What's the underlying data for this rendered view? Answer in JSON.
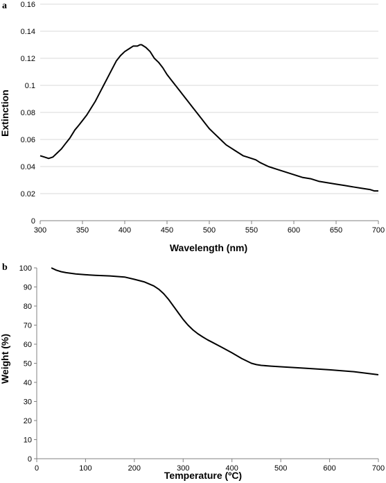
{
  "chart_data": [
    {
      "panel": "a",
      "type": "line",
      "title": "",
      "xlabel": "Wavelength (nm)",
      "ylabel": "Extinction",
      "xlim": [
        300,
        700
      ],
      "ylim": [
        0,
        0.16
      ],
      "xticks": [
        "300",
        "350",
        "400",
        "450",
        "500",
        "550",
        "600",
        "650",
        "700"
      ],
      "yticks": [
        "0",
        "0.02",
        "0.04",
        "0.06",
        "0.08",
        "0.1",
        "0.12",
        "0.14",
        "0.16"
      ],
      "grid": "horizontal",
      "series": [
        {
          "x": [
            300,
            305,
            310,
            315,
            320,
            325,
            330,
            335,
            340,
            341,
            345,
            350,
            355,
            360,
            365,
            370,
            375,
            380,
            385,
            390,
            395,
            400,
            405,
            410,
            415,
            418,
            420,
            425,
            430,
            435,
            440,
            445,
            450,
            455,
            460,
            465,
            470,
            475,
            480,
            485,
            490,
            495,
            500,
            505,
            510,
            515,
            520,
            525,
            530,
            535,
            540,
            545,
            550,
            555,
            560,
            570,
            580,
            590,
            600,
            610,
            620,
            630,
            640,
            650,
            660,
            670,
            680,
            690,
            695,
            700
          ],
          "y": [
            0.048,
            0.047,
            0.046,
            0.047,
            0.05,
            0.053,
            0.057,
            0.061,
            0.066,
            0.067,
            0.07,
            0.074,
            0.078,
            0.083,
            0.088,
            0.094,
            0.1,
            0.106,
            0.112,
            0.118,
            0.122,
            0.125,
            0.127,
            0.129,
            0.129,
            0.13,
            0.13,
            0.128,
            0.125,
            0.12,
            0.117,
            0.113,
            0.108,
            0.104,
            0.1,
            0.096,
            0.092,
            0.088,
            0.084,
            0.08,
            0.076,
            0.072,
            0.068,
            0.065,
            0.062,
            0.059,
            0.056,
            0.054,
            0.052,
            0.05,
            0.048,
            0.047,
            0.046,
            0.045,
            0.043,
            0.04,
            0.038,
            0.036,
            0.034,
            0.032,
            0.031,
            0.029,
            0.028,
            0.027,
            0.026,
            0.025,
            0.024,
            0.023,
            0.022,
            0.022
          ]
        }
      ]
    },
    {
      "panel": "b",
      "type": "line",
      "title": "",
      "xlabel": "Temperature (ºC)",
      "ylabel": "Weight (%)",
      "xlim": [
        0,
        700
      ],
      "ylim": [
        0,
        100
      ],
      "xticks": [
        "0",
        "100",
        "200",
        "300",
        "400",
        "500",
        "600",
        "700"
      ],
      "yticks": [
        "0",
        "10",
        "20",
        "30",
        "40",
        "50",
        "60",
        "70",
        "80",
        "90",
        "100"
      ],
      "grid": "none",
      "series": [
        {
          "x": [
            30,
            40,
            50,
            60,
            80,
            100,
            120,
            150,
            180,
            200,
            220,
            240,
            250,
            260,
            270,
            280,
            290,
            300,
            310,
            320,
            330,
            340,
            350,
            360,
            380,
            400,
            420,
            440,
            450,
            460,
            480,
            500,
            550,
            600,
            650,
            700
          ],
          "y": [
            100,
            98.8,
            98,
            97.5,
            96.8,
            96.4,
            96.1,
            95.8,
            95.2,
            94,
            92.7,
            90.5,
            88.8,
            86.5,
            83.5,
            80,
            76.5,
            73,
            70,
            67.5,
            65.5,
            63.8,
            62.3,
            61,
            58.3,
            55.5,
            52.5,
            50,
            49.3,
            48.9,
            48.5,
            48.2,
            47.4,
            46.6,
            45.6,
            44
          ]
        }
      ]
    }
  ],
  "panel_labels": {
    "a": "a",
    "b": "b"
  }
}
